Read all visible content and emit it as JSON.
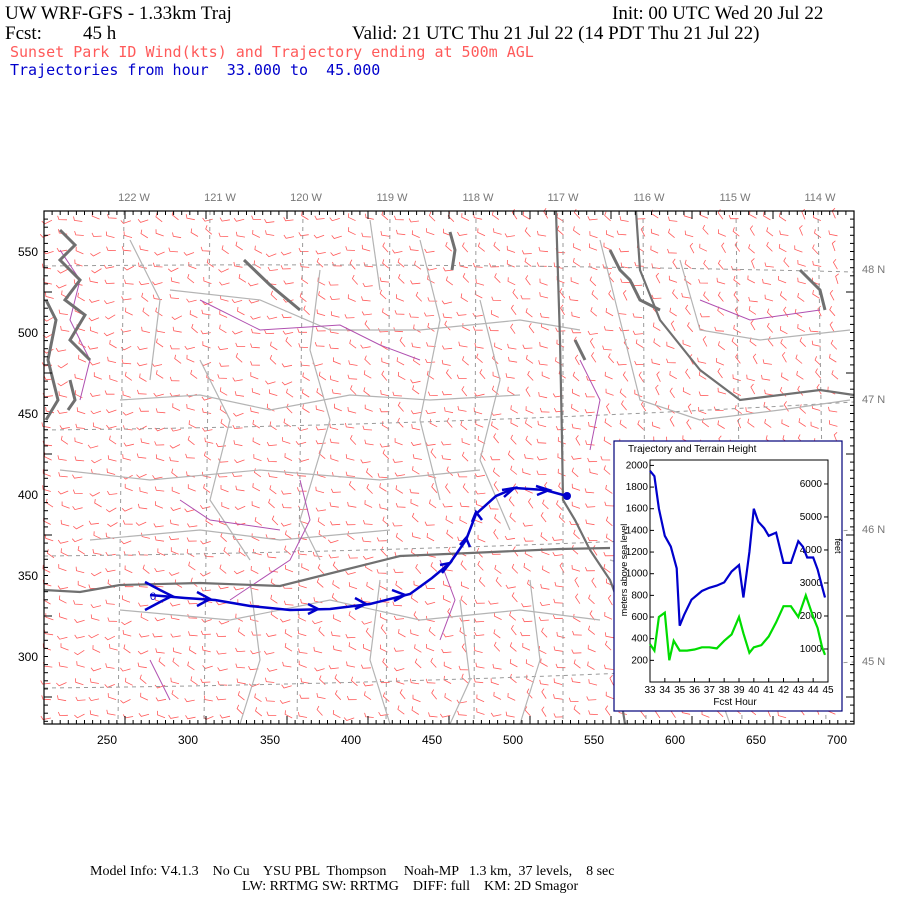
{
  "header": {
    "model": "UW WRF-GFS - 1.33km Traj",
    "init": "Init: 00 UTC Wed 20 Jul 22",
    "fcst_label": "Fcst:",
    "fcst_hours": "45 h",
    "valid": "Valid: 21 UTC Thu 21 Jul 22 (14 PDT Thu 21 Jul 22)",
    "subtitle": "Sunset Park ID Wind(kts) and Trajectory ending at 500m AGL",
    "traj_range": "Trajectories from hour  33.000 to  45.000"
  },
  "colors": {
    "wind_barb": "#ff5a5a",
    "trajectory": "#0000cc",
    "terrain_line": "#00dd00",
    "state_border": "#808080",
    "county_line": "#aaaaaa",
    "water": "#707070",
    "river": "#b050b0",
    "subtitle": "#ff5a5a"
  },
  "map": {
    "lon_labels": [
      "122 W",
      "121 W",
      "120 W",
      "119 W",
      "118 W",
      "117 W",
      "116 W",
      "115 W",
      "114 W"
    ],
    "lat_labels": [
      "48 N",
      "47 N",
      "46 N",
      "45 N"
    ],
    "x_ticks": [
      "250",
      "300",
      "350",
      "400",
      "450",
      "500",
      "550",
      "600",
      "650",
      "700"
    ],
    "y_ticks": [
      "550",
      "500",
      "450",
      "400",
      "350",
      "300"
    ],
    "end_marker": "0"
  },
  "inset": {
    "title": "Trajectory and Terrain Height",
    "ylabel_left": "meters above sea level",
    "ylabel_right": "feet",
    "xlabel": "Fcst Hour",
    "x_ticks": [
      "33",
      "34",
      "35",
      "36",
      "37",
      "38",
      "39",
      "40",
      "41",
      "42",
      "43",
      "44",
      "45"
    ],
    "y_ticks_m": [
      "200",
      "400",
      "600",
      "800",
      "1000",
      "1200",
      "1400",
      "1600",
      "1800",
      "2000"
    ],
    "y_ticks_ft": [
      "1000",
      "2000",
      "3000",
      "4000",
      "5000",
      "6000"
    ]
  },
  "chart_data": {
    "type": "line",
    "title": "Trajectory and Terrain Height",
    "xlabel": "Fcst Hour",
    "ylabel": "meters above sea level",
    "xlim": [
      33,
      45
    ],
    "ylim": [
      0,
      2050
    ],
    "series": [
      {
        "color": "#0000cc",
        "x": [
          33,
          33.3,
          33.6,
          34,
          34.4,
          34.8,
          35,
          35.3,
          35.8,
          36.5,
          37,
          37.5,
          38,
          38.5,
          39,
          39.3,
          39.7,
          40,
          40.3,
          40.7,
          41,
          41.5,
          42,
          42.5,
          43,
          43.3,
          43.6,
          44,
          44.3,
          44.6,
          44.8
        ],
        "values": [
          1950,
          1900,
          1600,
          1350,
          1250,
          1050,
          520,
          620,
          760,
          840,
          870,
          890,
          920,
          1020,
          1080,
          780,
          1200,
          1600,
          1480,
          1420,
          1350,
          1380,
          1100,
          1100,
          1300,
          1250,
          1150,
          1150,
          1040,
          880,
          780
        ]
      },
      {
        "color": "#00dd00",
        "x": [
          33,
          33.3,
          33.6,
          34,
          34.3,
          34.6,
          35,
          35.5,
          36,
          36.5,
          37,
          37.5,
          38,
          38.5,
          39,
          39.3,
          39.7,
          40,
          40.5,
          41,
          41.5,
          42,
          42.5,
          43,
          43.5,
          44,
          44.3,
          44.6,
          44.8
        ],
        "values": [
          350,
          290,
          600,
          640,
          200,
          380,
          290,
          290,
          300,
          320,
          320,
          310,
          380,
          440,
          600,
          450,
          270,
          320,
          340,
          420,
          550,
          700,
          700,
          600,
          800,
          600,
          500,
          320,
          250
        ]
      }
    ]
  },
  "footer": {
    "line1": "Model Info: V4.1.3    No Cu    YSU PBL  Thompson     Noah-MP   1.3 km,  37 levels,    8 sec",
    "line2": "LW: RRTMG SW: RRTMG    DIFF: full    KM: 2D Smagor"
  }
}
